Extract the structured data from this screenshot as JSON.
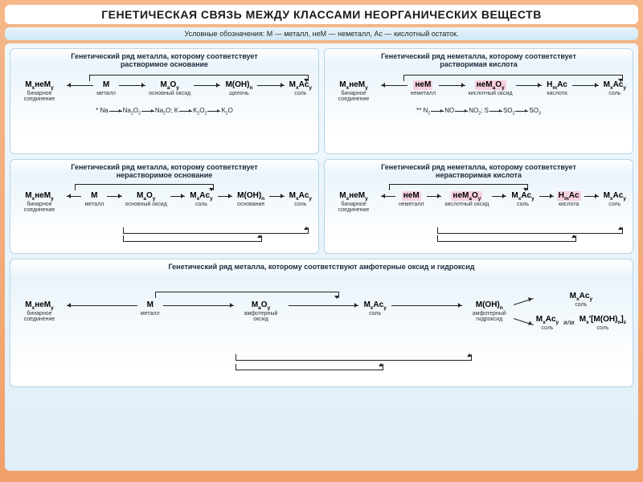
{
  "colors": {
    "frame_gradient_top": "#f5b78a",
    "frame_gradient_bottom": "#f0a06a",
    "panel_border": "#b8d4e6",
    "highlight_bg": "#f8d0e0",
    "text": "#1a1a1a"
  },
  "title": "ГЕНЕТИЧЕСКАЯ  СВЯЗЬ МЕЖДУ КЛАССАМИ НЕОРГАНИЧЕСКИХ ВЕЩЕСТВ",
  "legend": "Условные обозначения: М — металл, неМ — неметалл, Ас — кислотный остаток.",
  "panels": {
    "p1": {
      "title_l1": "Генетический ряд металла, которому соответствует",
      "title_l2": "растворимое основание",
      "nodes": [
        {
          "f": "M<sub>x</sub>неM<sub>y</sub>",
          "label": "бинарное соединение"
        },
        {
          "f": "M",
          "label": "металл"
        },
        {
          "f": "M<sub>a</sub>O<sub>y</sub>",
          "label": "основный оксид"
        },
        {
          "f": "M(OH)<sub>n</sub>",
          "label": "щелочь"
        },
        {
          "f": "M<sub>x</sub>Ac<sub>y</sub>",
          "label": "соль"
        }
      ],
      "star": "*",
      "sub_l": "* Na",
      "sub_items": [
        "Na<sub>2</sub>O<sub>2</sub>",
        "Na<sub>2</sub>O;  K",
        "K<sub>2</sub>O<sub>2</sub>",
        "K<sub>2</sub>O"
      ]
    },
    "p2": {
      "title_l1": "Генетический ряд неметалла, которому соответствует",
      "title_l2": "растворимая кислота",
      "nodes": [
        {
          "f": "M<sub>x</sub>неM<sub>y</sub>",
          "label": "бинарное соединение"
        },
        {
          "f": "неМ",
          "label": "неметалл",
          "hl": true
        },
        {
          "f": "неМ<sub>a</sub>O<sub>y</sub>",
          "label": "кислотный оксид",
          "hl": true
        },
        {
          "f": "H<sub>m</sub>Ac",
          "label": "кислота"
        },
        {
          "f": "M<sub>x</sub>Ac<sub>y</sub>",
          "label": "соль"
        }
      ],
      "star": "**",
      "sub_l": "** N<sub>2</sub>",
      "sub_items": [
        "NO",
        "NO<sub>2</sub>;  S",
        "SO<sub>2</sub>",
        "SO<sub>3</sub>"
      ]
    },
    "p3": {
      "title_l1": "Генетический ряд металла, которому соответствует",
      "title_l2": "нерастворимое основание",
      "nodes": [
        {
          "f": "M<sub>x</sub>неM<sub>y</sub>",
          "label": "бинарное соединение"
        },
        {
          "f": "M",
          "label": "металл"
        },
        {
          "f": "M<sub>a</sub>O<sub>y</sub>",
          "label": "основный оксид"
        },
        {
          "f": "M<sub>x</sub>Ac<sub>y</sub>",
          "label": "соль"
        },
        {
          "f": "M(OH)<sub>n</sub>",
          "label": "основание"
        },
        {
          "f": "M<sub>x</sub>Ac<sub>y</sub>",
          "label": "соль"
        }
      ]
    },
    "p4": {
      "title_l1": "Генетический ряд неметалла, которому соответствует",
      "title_l2": "нерастворимая кислота",
      "nodes": [
        {
          "f": "M<sub>x</sub>неM<sub>y</sub>",
          "label": "бинарное соединение"
        },
        {
          "f": "неМ",
          "label": "неметалл",
          "hl": true
        },
        {
          "f": "неМ<sub>a</sub>O<sub>y</sub>",
          "label": "кислотный оксид",
          "hl": true
        },
        {
          "f": "M<sub>x</sub>Ac<sub>y</sub>",
          "label": "соль"
        },
        {
          "f": "H<sub>m</sub>Ac",
          "label": "кислота",
          "hl": true
        },
        {
          "f": "M<sub>x</sub>Ac<sub>y</sub>",
          "label": "соль"
        }
      ]
    },
    "p5": {
      "title": "Генетический ряд металла, которому соответствуют амфотерные оксид и гидроксид",
      "nodes": [
        {
          "f": "M<sub>x</sub>неM<sub>y</sub>",
          "label": "бинарное соединение"
        },
        {
          "f": "M",
          "label": "металл"
        },
        {
          "f": "M<sub>a</sub>O<sub>y</sub>",
          "label": "амфотерный оксид"
        },
        {
          "f": "M<sub>x</sub>Ac<sub>y</sub>",
          "label": "соль"
        },
        {
          "f": "M(OH)<sub>n</sub>",
          "label": "амфотерный гидроксид"
        }
      ],
      "branch_top": {
        "f": "M<sub>x</sub>Ac<sub>y</sub>",
        "label": "соль"
      },
      "branch_bot": {
        "f": "M<sub>x</sub>Ac<sub>y</sub>",
        "label": "соль"
      },
      "or": "или",
      "alt": {
        "f": "M<sub>x</sub>'[M(OH)<sub>n</sub>]<sub>z</sub>",
        "label": "соль"
      }
    }
  }
}
